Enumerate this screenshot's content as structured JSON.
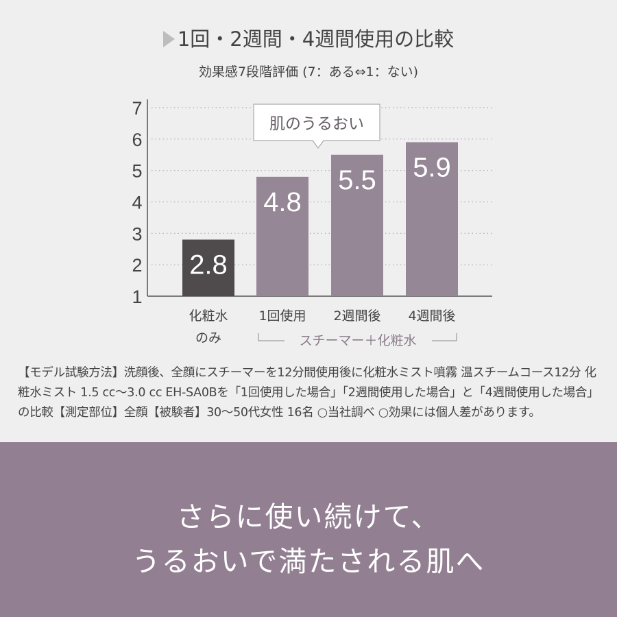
{
  "title": "1回・2週間・4週間使用の比較",
  "subtitle": "効果感7段階評価 (7：ある⇔1：ない)",
  "chart_data": {
    "type": "bar",
    "categories": [
      "化粧水のみ",
      "1回使用",
      "2週間後",
      "4週間後"
    ],
    "category_lines": [
      [
        "化粧水",
        "のみ"
      ],
      [
        "1回使用"
      ],
      [
        "2週間後"
      ],
      [
        "4週間後"
      ]
    ],
    "values": [
      2.8,
      4.8,
      5.5,
      5.9
    ],
    "data_labels": [
      "2.8",
      "4.8",
      "5.5",
      "5.9"
    ],
    "yticks": [
      "1",
      "2",
      "3",
      "4",
      "5",
      "6",
      "7"
    ],
    "ylim": [
      1,
      7
    ],
    "grid": "dotted horizontal",
    "bar_colors": [
      "#4f4b4c",
      "#958795",
      "#958795",
      "#958795"
    ],
    "callout": "肌のうるおい",
    "group_label": "スチーマー＋化粧水"
  },
  "footnote": "【モデル試験方法】洗顔後、全顔にスチーマーを12分間使用後に化粧水ミスト噴霧 温スチームコース12分 化粧水ミスト 1.5 cc〜3.0 cc EH-SA0Bを「1回使用した場合」「2週間使用した場合」と「4週間使用した場合」の比較【測定部位】全顔【被験者】30〜50代女性 16名 ○当社調べ ○効果には個人差があります。",
  "banner": {
    "line1": "さらに使い続けて、",
    "line2": "うるおいで満たされる肌へ",
    "color": "#927f91"
  }
}
